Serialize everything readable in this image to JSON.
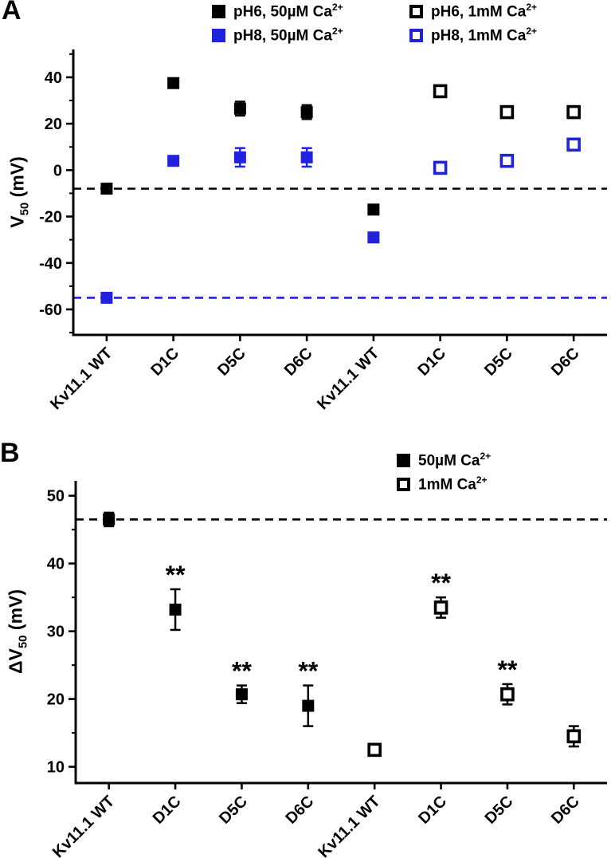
{
  "figure": {
    "panel_a_letter": "A",
    "panel_b_letter": "B"
  },
  "chart_data": [
    {
      "panel": "A",
      "type": "scatter",
      "title": "",
      "xlabel": "",
      "ylabel": {
        "pre": "V",
        "sub": "50",
        "post": " (mV)"
      },
      "ylim": [
        -71,
        52
      ],
      "yticks": [
        40,
        20,
        0,
        -20,
        -40,
        -60
      ],
      "yminor": 10,
      "grid": false,
      "categories": [
        "Kv11.1 WT",
        "D1C",
        "D5C",
        "D6C",
        "Kv11.1 WT",
        "D1C",
        "D5C",
        "D6C"
      ],
      "ref_lines": [
        {
          "y": -8,
          "color": "#000000",
          "style": "dashed"
        },
        {
          "y": -55,
          "color": "#2222DD",
          "style": "dashed"
        }
      ],
      "legend": {
        "position": "top-right",
        "columns": 2,
        "items": [
          {
            "label": "pH6, 50µM Ca",
            "sup": "2+",
            "color": "#000000",
            "fill": "solid",
            "col": 0,
            "row": 0
          },
          {
            "label": "pH8, 50µM Ca",
            "sup": "2+",
            "color": "#2222DD",
            "fill": "solid",
            "col": 0,
            "row": 1
          },
          {
            "label": "pH6, 1mM Ca",
            "sup": "2+",
            "color": "#000000",
            "fill": "open",
            "col": 1,
            "row": 0
          },
          {
            "label": "pH8, 1mM Ca",
            "sup": "2+",
            "color": "#2222DD",
            "fill": "open",
            "col": 1,
            "row": 1
          }
        ]
      },
      "points": [
        {
          "cat": 0,
          "y": -8,
          "err": 1.5,
          "color": "#000000",
          "fill": "solid"
        },
        {
          "cat": 0,
          "y": -55,
          "err": 1.5,
          "color": "#2222DD",
          "fill": "solid"
        },
        {
          "cat": 1,
          "y": 37.5,
          "err": 2,
          "color": "#000000",
          "fill": "solid"
        },
        {
          "cat": 1,
          "y": 4,
          "err": 1.5,
          "color": "#2222DD",
          "fill": "solid"
        },
        {
          "cat": 2,
          "y": 26.5,
          "err": 3,
          "color": "#000000",
          "fill": "solid"
        },
        {
          "cat": 2,
          "y": 5.5,
          "err": 4,
          "color": "#2222DD",
          "fill": "solid"
        },
        {
          "cat": 3,
          "y": 25,
          "err": 3,
          "color": "#000000",
          "fill": "solid"
        },
        {
          "cat": 3,
          "y": 5.5,
          "err": 4,
          "color": "#2222DD",
          "fill": "solid"
        },
        {
          "cat": 4,
          "y": -17,
          "err": 2,
          "color": "#000000",
          "fill": "solid"
        },
        {
          "cat": 4,
          "y": -29,
          "err": 2,
          "color": "#2222DD",
          "fill": "solid"
        },
        {
          "cat": 5,
          "y": 34,
          "err": 2,
          "color": "#000000",
          "fill": "open"
        },
        {
          "cat": 5,
          "y": 1,
          "err": 2,
          "color": "#2222DD",
          "fill": "open"
        },
        {
          "cat": 6,
          "y": 25,
          "err": 2,
          "color": "#000000",
          "fill": "open"
        },
        {
          "cat": 6,
          "y": 4,
          "err": 2,
          "color": "#2222DD",
          "fill": "open"
        },
        {
          "cat": 7,
          "y": 25,
          "err": 2,
          "color": "#000000",
          "fill": "open"
        },
        {
          "cat": 7,
          "y": 11,
          "err": 2,
          "color": "#2222DD",
          "fill": "open"
        }
      ]
    },
    {
      "panel": "B",
      "type": "scatter",
      "title": "",
      "xlabel": "",
      "ylabel": {
        "pre": "ΔV",
        "sub": "50",
        "post": " (mV)"
      },
      "ylim": [
        7.6,
        52.2
      ],
      "yticks": [
        50,
        40,
        30,
        20,
        10
      ],
      "yminor": 5,
      "grid": false,
      "categories": [
        "Kv11.1 WT",
        "D1C",
        "D5C",
        "D6C",
        "Kv11.1 WT",
        "D1C",
        "D5C",
        "D6C"
      ],
      "ref_lines": [
        {
          "y": 46.5,
          "color": "#000000",
          "style": "dashed"
        }
      ],
      "legend": {
        "position": "top-right",
        "columns": 1,
        "items": [
          {
            "label": "50µM Ca",
            "sup": "2+",
            "color": "#000000",
            "fill": "solid",
            "col": 0,
            "row": 0
          },
          {
            "label": "1mM Ca",
            "sup": "2+",
            "color": "#000000",
            "fill": "open",
            "col": 0,
            "row": 1
          }
        ]
      },
      "points": [
        {
          "cat": 0,
          "y": 46.5,
          "err": 1,
          "color": "#000000",
          "fill": "solid"
        },
        {
          "cat": 1,
          "y": 33.2,
          "err": 3,
          "color": "#000000",
          "fill": "solid",
          "sig": "**"
        },
        {
          "cat": 2,
          "y": 20.7,
          "err": 1.3,
          "color": "#000000",
          "fill": "solid",
          "sig": "**"
        },
        {
          "cat": 3,
          "y": 19,
          "err": 3,
          "color": "#000000",
          "fill": "solid",
          "sig": "**"
        },
        {
          "cat": 4,
          "y": 12.5,
          "err": 0.6,
          "color": "#000000",
          "fill": "open"
        },
        {
          "cat": 5,
          "y": 33.5,
          "err": 1.5,
          "color": "#000000",
          "fill": "open",
          "sig": "**"
        },
        {
          "cat": 6,
          "y": 20.7,
          "err": 1.5,
          "color": "#000000",
          "fill": "open",
          "sig": "**"
        },
        {
          "cat": 7,
          "y": 14.5,
          "err": 1.5,
          "color": "#000000",
          "fill": "open"
        }
      ]
    }
  ]
}
